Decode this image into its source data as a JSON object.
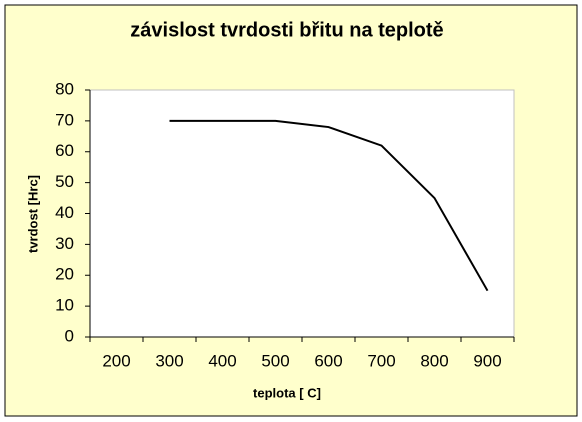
{
  "chart_data": {
    "type": "line",
    "title": "závislost tvrdosti břitu na teplotě",
    "x_label": "teplota [ C]",
    "y_label": "tvrdost [Hrc]",
    "categories": [
      "200",
      "300",
      "400",
      "500",
      "600",
      "700",
      "800",
      "900"
    ],
    "series": [
      {
        "name": "tvrdost",
        "color": "#000000",
        "values": [
          null,
          70,
          70,
          70,
          68,
          62,
          45,
          15
        ]
      }
    ],
    "ylim": [
      0,
      80
    ],
    "yticks": [
      0,
      10,
      20,
      30,
      40,
      50,
      60,
      70,
      80
    ],
    "grid": false,
    "legend": false
  }
}
